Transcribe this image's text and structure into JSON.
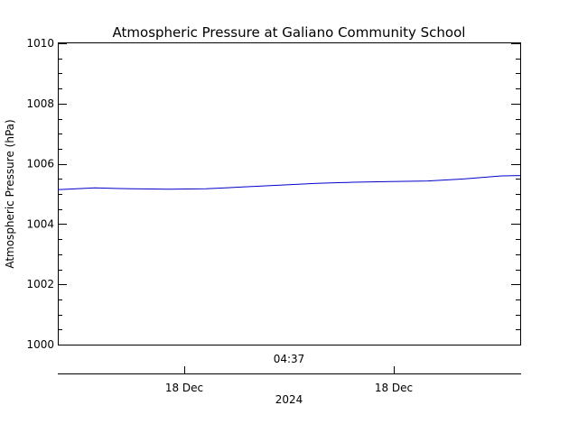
{
  "chart_data": {
    "type": "line",
    "title": "Atmospheric Pressure at Galiano Community School",
    "ylabel": "Atmospheric Pressure (hPa)",
    "ylim": [
      1000,
      1010
    ],
    "y_ticks": [
      "1000",
      "1002",
      "1004",
      "1006",
      "1008",
      "1010"
    ],
    "time_axis": {
      "center_label": "04:37",
      "date_ticks": [
        "18 Dec",
        "18 Dec"
      ],
      "year_label": "2024"
    },
    "grid": false,
    "series": [
      {
        "color": "#0000cc",
        "x": [
          0.0,
          0.08,
          0.16,
          0.24,
          0.32,
          0.4,
          0.48,
          0.56,
          0.64,
          0.72,
          0.8,
          0.88,
          0.96,
          1.0
        ],
        "values": [
          1005.14,
          1005.2,
          1005.17,
          1005.16,
          1005.17,
          1005.23,
          1005.29,
          1005.35,
          1005.39,
          1005.41,
          1005.43,
          1005.5,
          1005.6,
          1005.61
        ]
      }
    ]
  }
}
